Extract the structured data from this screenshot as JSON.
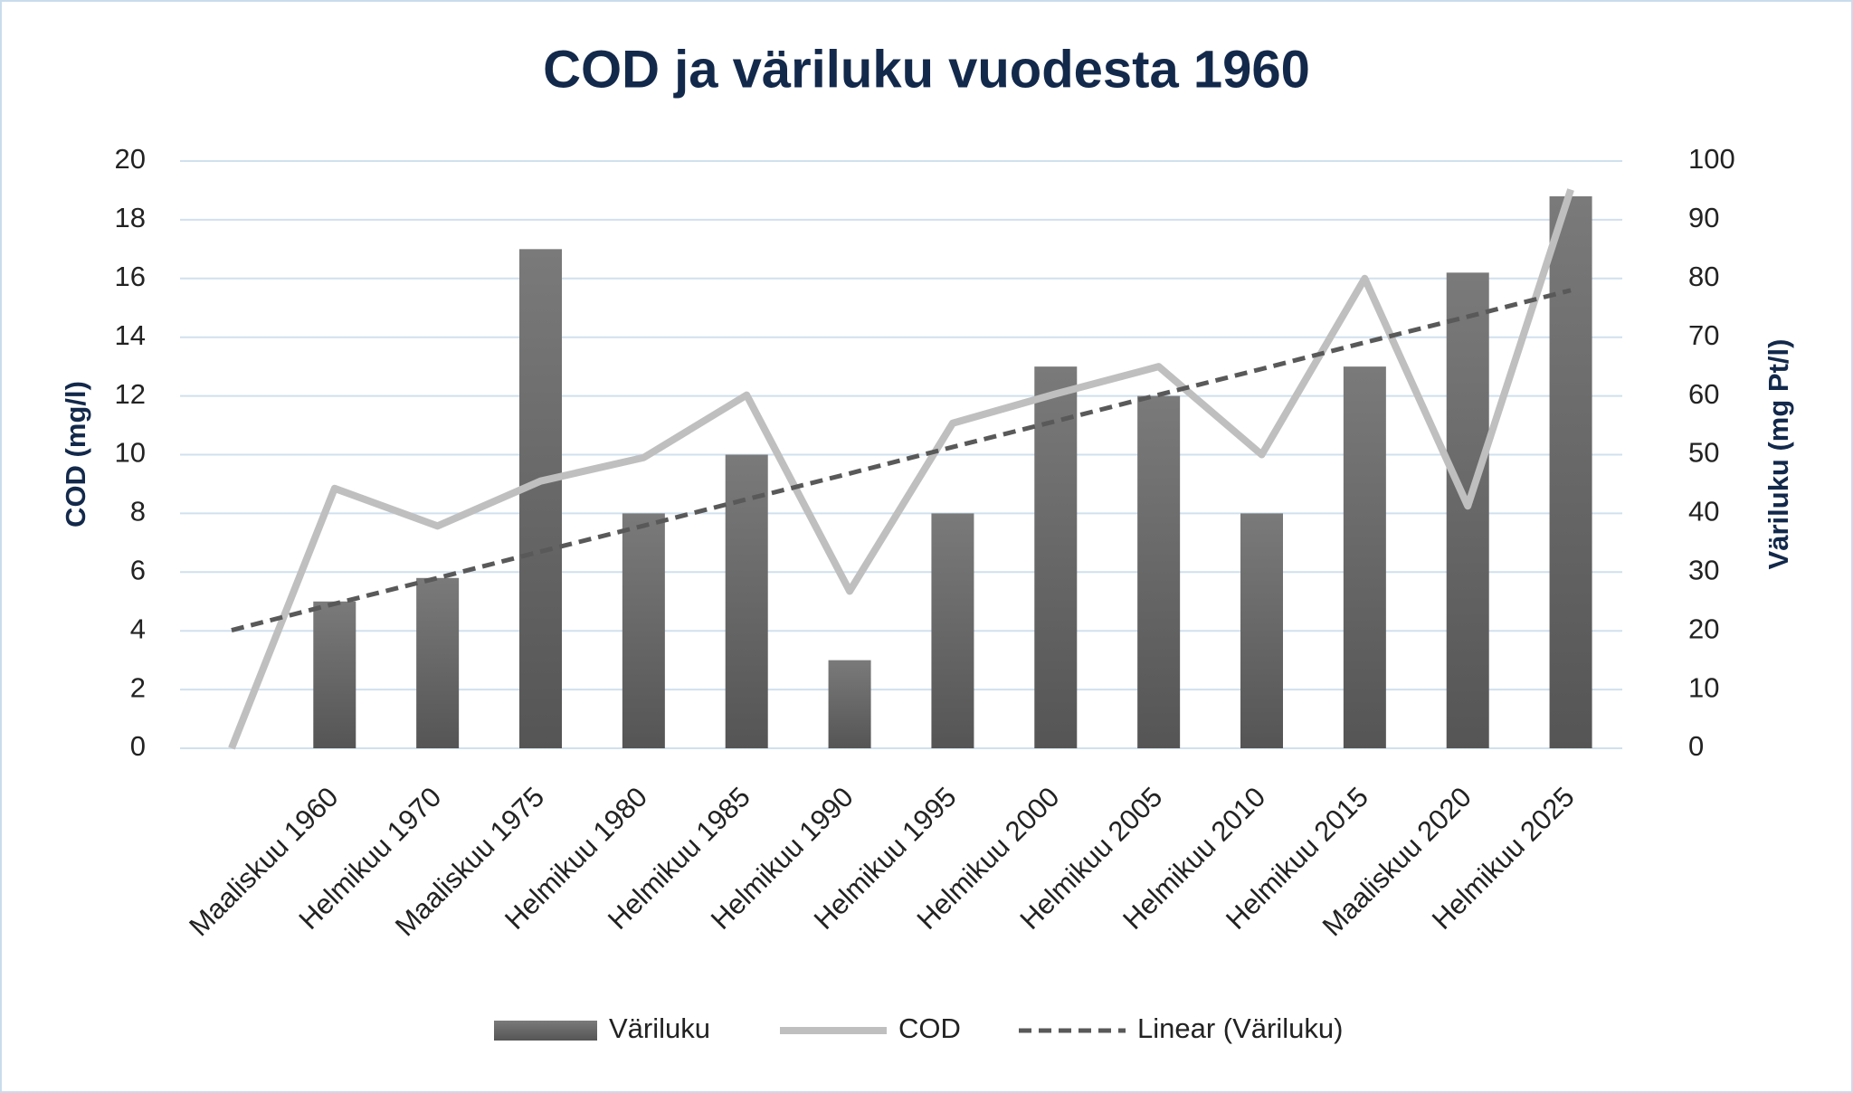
{
  "chart_data": {
    "type": "bar-line",
    "title": "COD ja väriluku vuodesta 1960",
    "y_label": "COD (mg/l)",
    "y2_label": "Väriluku (mg Pt/l)",
    "categories": [
      null,
      "Maaliskuu 1960",
      "Helmikuu 1970",
      "Maaliskuu 1975",
      "Helmikuu 1980",
      "Helmikuu 1985",
      "Helmikuu 1990",
      "Helmikuu 1995",
      "Helmikuu 2000",
      "Helmikuu 2005",
      "Helmikuu 2010",
      "Helmikuu 2015",
      "Maaliskuu 2020",
      "Helmikuu 2025"
    ],
    "series": [
      {
        "name": "Väriluku",
        "type": "bar",
        "axis": "y2",
        "color": "#5f5f5f",
        "values": [
          null,
          25,
          29,
          85,
          40,
          50,
          15,
          40,
          65,
          60,
          40,
          65,
          81,
          94
        ]
      },
      {
        "name": "COD",
        "type": "line",
        "axis": "y",
        "color": "#bfbfbf",
        "values": [
          0,
          8.85,
          7.57,
          9.1,
          9.9,
          12.03,
          5.35,
          11.07,
          12.07,
          13,
          10,
          16,
          8.25,
          19.03
        ]
      },
      {
        "name": "Linear (Väriluku)",
        "type": "trend",
        "axis": "y2",
        "color": "#595959",
        "values": [
          20.1,
          24.6,
          29.0,
          33.5,
          37.9,
          42.4,
          46.8,
          51.3,
          55.7,
          60.2,
          64.6,
          69.1,
          73.5,
          78.0
        ]
      }
    ],
    "ylim": [
      0,
      20
    ],
    "yticks": [
      0,
      2,
      4,
      6,
      8,
      10,
      12,
      14,
      16,
      18,
      20
    ],
    "y2lim": [
      0,
      100
    ],
    "y2ticks": [
      0,
      10,
      20,
      30,
      40,
      50,
      60,
      70,
      80,
      90,
      100
    ],
    "grid": true,
    "legend": "bottom"
  }
}
